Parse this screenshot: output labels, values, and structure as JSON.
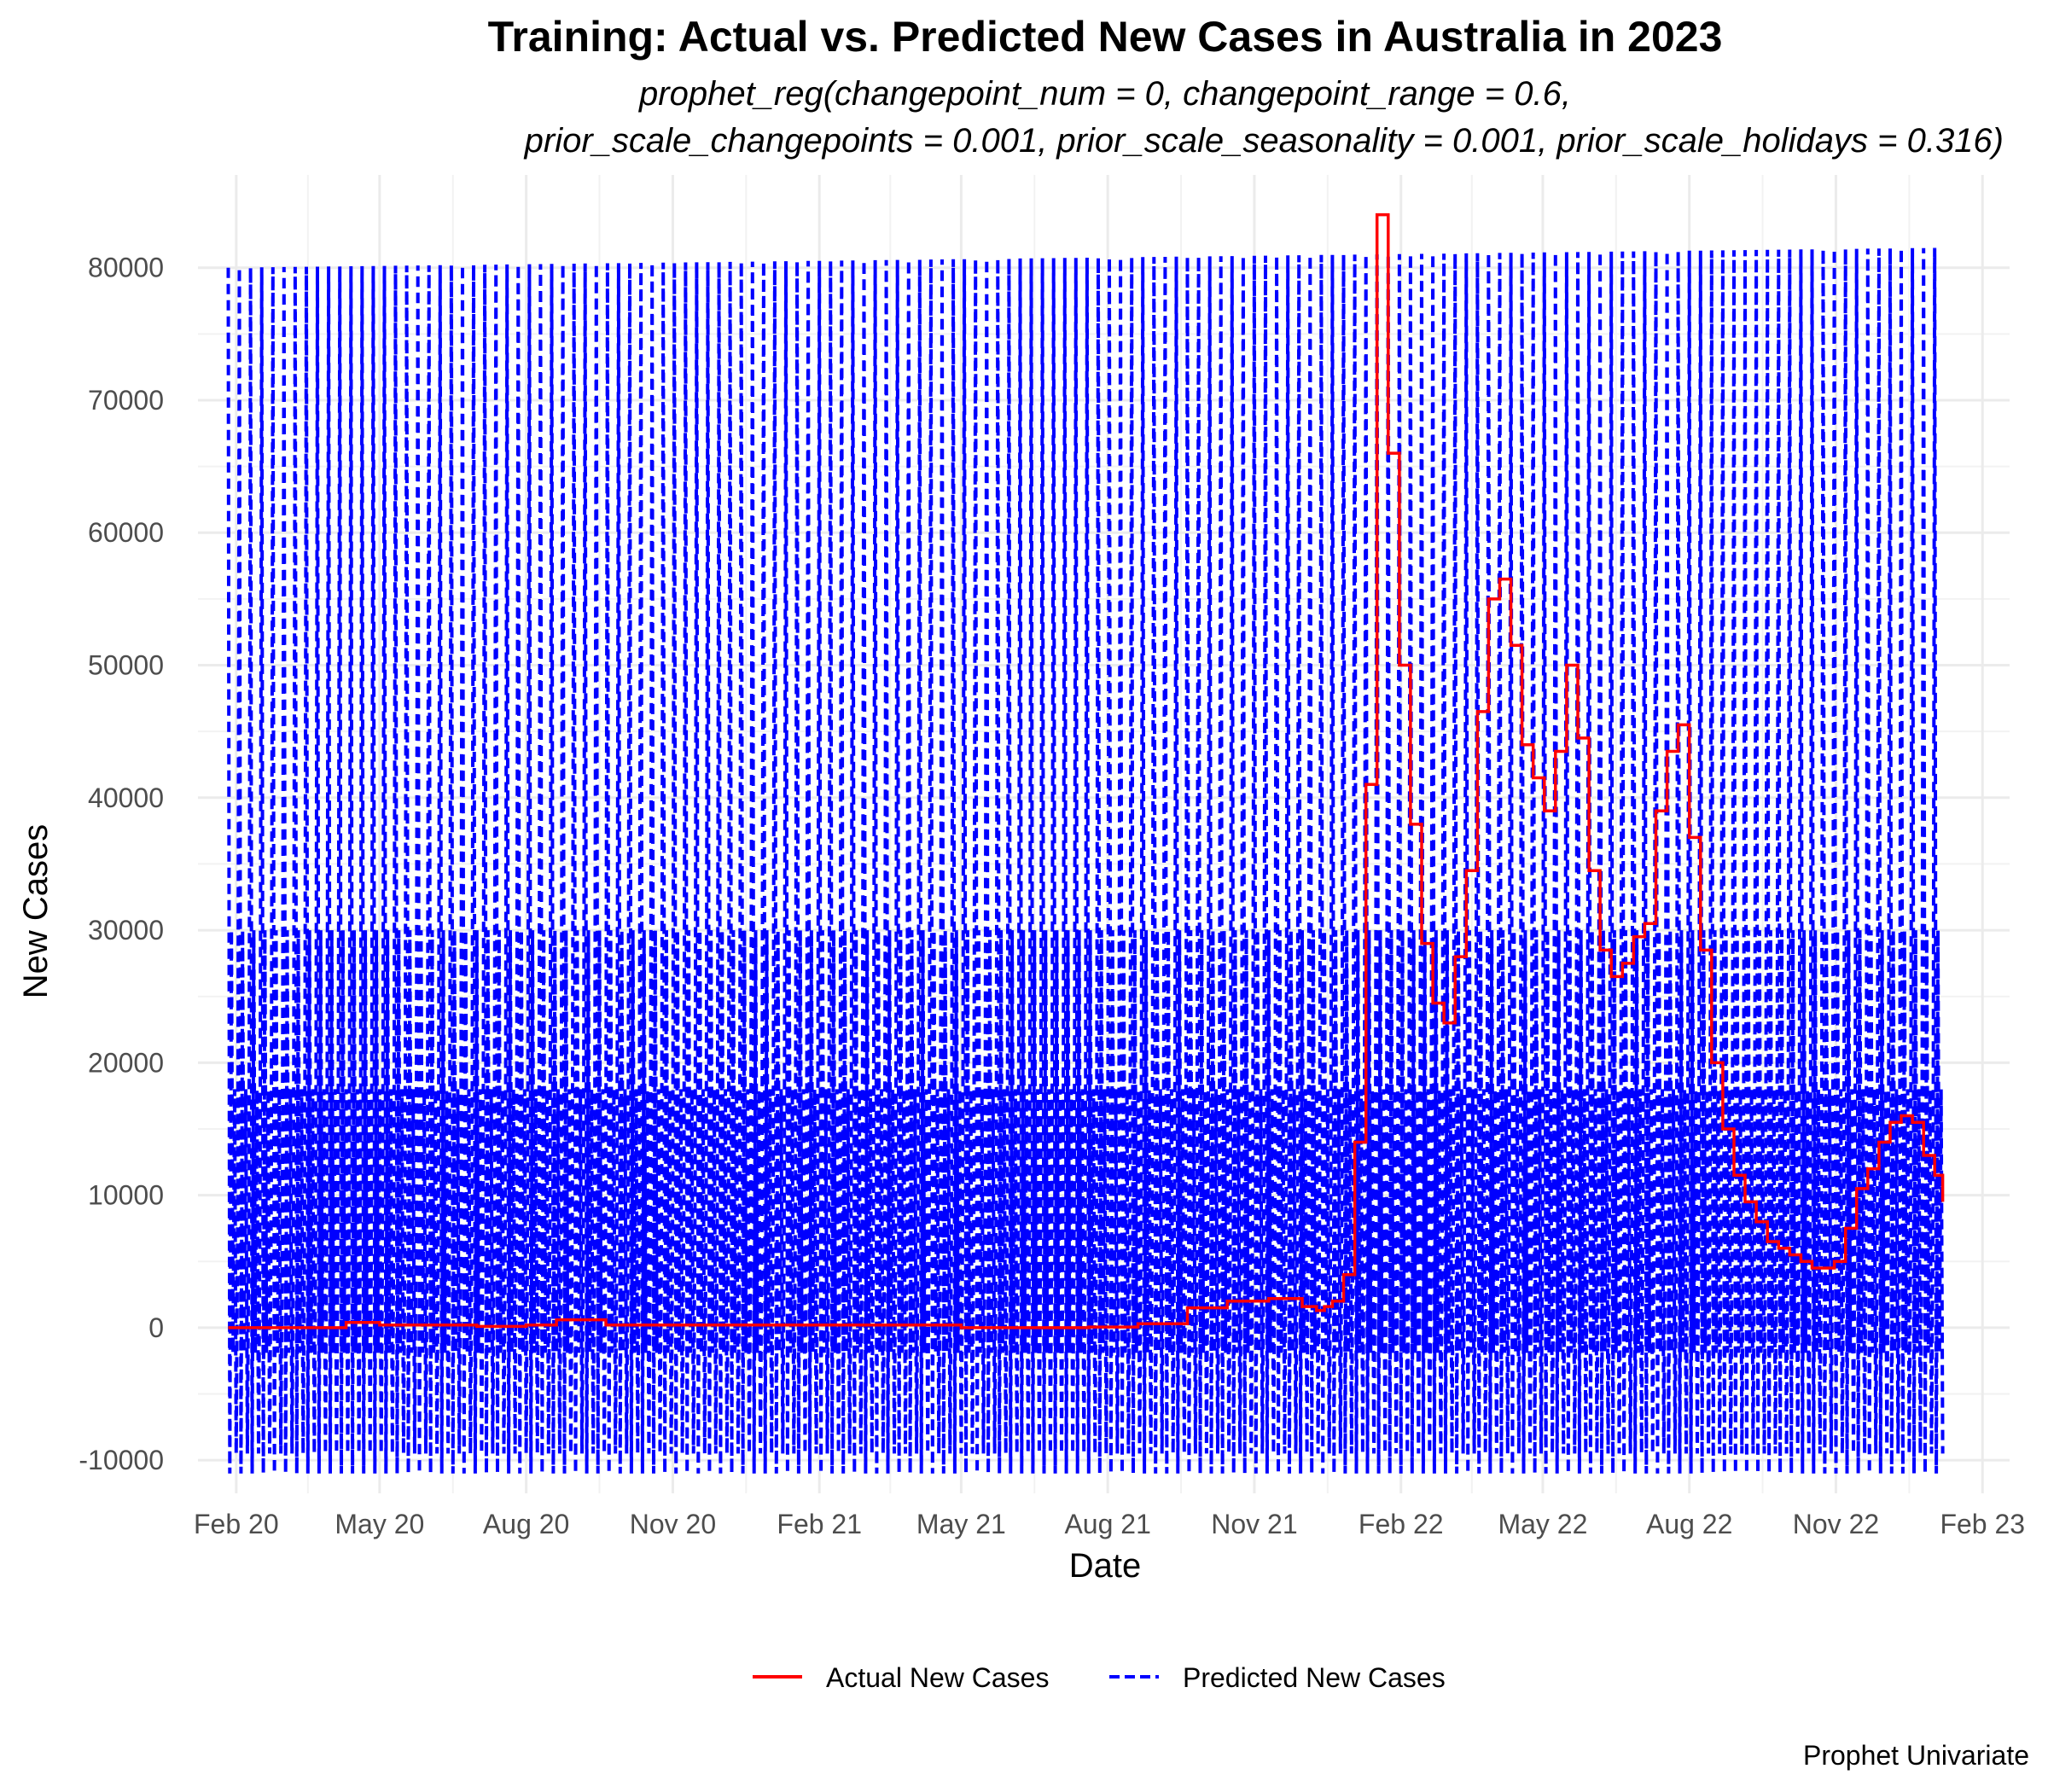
{
  "chart_data": {
    "type": "line",
    "title": "Training: Actual vs. Predicted New Cases in Australia in 2023",
    "subtitle_line1": "prophet_reg(changepoint_num = 0, changepoint_range = 0.6,",
    "subtitle_line2": "prior_scale_changepoints = 0.001, prior_scale_seasonality = 0.001, prior_scale_holidays = 0.316)",
    "xlabel": "Date",
    "ylabel": "New Cases",
    "caption": "Prophet Univariate",
    "x_range": [
      "2020-01-08",
      "2023-02-18"
    ],
    "ylim": [
      -12500,
      87000
    ],
    "y_ticks": [
      -10000,
      0,
      10000,
      20000,
      30000,
      40000,
      50000,
      60000,
      70000,
      80000
    ],
    "y_tick_labels": [
      "-10000",
      "0",
      "10000",
      "20000",
      "30000",
      "40000",
      "50000",
      "60000",
      "70000",
      "80000"
    ],
    "x_ticks": [
      "2020-02-01",
      "2020-05-01",
      "2020-08-01",
      "2020-11-01",
      "2021-02-01",
      "2021-05-01",
      "2021-08-01",
      "2021-11-01",
      "2022-02-01",
      "2022-05-01",
      "2022-08-01",
      "2022-11-01",
      "2023-02-01"
    ],
    "x_tick_labels": [
      "Feb 20",
      "May 20",
      "Aug 20",
      "Nov 20",
      "Feb 21",
      "May 21",
      "Aug 21",
      "Nov 21",
      "Feb 22",
      "May 22",
      "Aug 22",
      "Nov 22",
      "Feb 23"
    ],
    "grid": true,
    "legend_position": "bottom",
    "series": [
      {
        "name": "Actual New Cases",
        "color": "#ff0000",
        "style": "solid",
        "step": "weekly",
        "x": [
          "2020-01-27",
          "2020-03-15",
          "2020-04-10",
          "2020-05-01",
          "2020-07-01",
          "2020-08-01",
          "2020-08-20",
          "2020-09-20",
          "2021-05-01",
          "2021-07-20",
          "2021-08-20",
          "2021-09-20",
          "2021-10-15",
          "2021-11-10",
          "2021-12-01",
          "2021-12-10",
          "2021-12-15",
          "2021-12-20",
          "2021-12-27",
          "2022-01-03",
          "2022-01-10",
          "2022-01-17",
          "2022-01-24",
          "2022-01-31",
          "2022-02-07",
          "2022-02-14",
          "2022-02-21",
          "2022-02-28",
          "2022-03-07",
          "2022-03-14",
          "2022-03-21",
          "2022-03-28",
          "2022-04-04",
          "2022-04-11",
          "2022-04-18",
          "2022-04-25",
          "2022-05-02",
          "2022-05-09",
          "2022-05-16",
          "2022-05-23",
          "2022-05-30",
          "2022-06-06",
          "2022-06-13",
          "2022-06-20",
          "2022-06-27",
          "2022-07-04",
          "2022-07-11",
          "2022-07-18",
          "2022-07-25",
          "2022-08-01",
          "2022-08-08",
          "2022-08-15",
          "2022-08-22",
          "2022-08-29",
          "2022-09-05",
          "2022-09-12",
          "2022-09-19",
          "2022-09-26",
          "2022-10-03",
          "2022-10-10",
          "2022-10-17",
          "2022-10-24",
          "2022-10-31",
          "2022-11-07",
          "2022-11-14",
          "2022-11-21",
          "2022-11-28",
          "2022-12-05",
          "2022-12-12",
          "2022-12-19",
          "2022-12-26",
          "2023-01-02",
          "2023-01-07"
        ],
        "values": [
          0,
          0,
          400,
          200,
          100,
          200,
          600,
          200,
          0,
          50,
          300,
          1500,
          2000,
          2200,
          1600,
          1300,
          1600,
          2000,
          4000,
          14000,
          41000,
          84000,
          66000,
          50000,
          38000,
          29000,
          24500,
          23000,
          28000,
          34500,
          46500,
          55000,
          56500,
          51500,
          44000,
          41500,
          39000,
          43500,
          50000,
          44500,
          34500,
          28500,
          26500,
          27500,
          29500,
          30500,
          39000,
          43500,
          45500,
          37000,
          28500,
          20000,
          15000,
          11500,
          9500,
          8000,
          6500,
          6000,
          5500,
          5000,
          4500,
          4500,
          5000,
          7500,
          10500,
          12000,
          14000,
          15500,
          16000,
          15500,
          13000,
          11500,
          9500
        ]
      },
      {
        "name": "Predicted New Cases",
        "color": "#0000ff",
        "style": "dashed",
        "periodicity": "weekly",
        "weekly_high": 80000,
        "weekly_low": -11000,
        "secondary_high": 30000,
        "envelope_rise_from": 80000,
        "envelope_rise_to": 81500,
        "mid_low": -9500,
        "x_start": "2020-01-27",
        "x_end": "2023-01-07"
      }
    ]
  },
  "legend": {
    "actual_label": "Actual New Cases",
    "predicted_label": "Predicted New Cases"
  }
}
